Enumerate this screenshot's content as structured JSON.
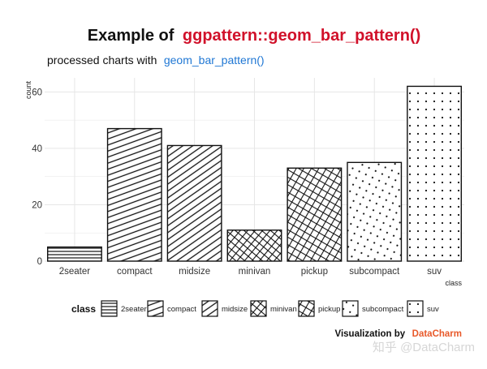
{
  "title": {
    "prefix": "Example of",
    "accent": "ggpattern::geom_bar_pattern()"
  },
  "subtitle": {
    "prefix": "processed charts with",
    "accent": "geom_bar_pattern()"
  },
  "caption": {
    "prefix": "Visualization by",
    "accent": "DataCharm"
  },
  "watermark": "知乎 @DataCharm",
  "colors": {
    "title_accent": "#d1112a",
    "subtitle_accent": "#1f77d4",
    "caption_accent": "#e8592a",
    "bar_outline": "#111111",
    "grid": "#e6e6e6"
  },
  "legend": {
    "title": "class"
  },
  "chart_data": {
    "type": "bar",
    "xlabel": "class",
    "ylabel": "count",
    "ylim": [
      0,
      65
    ],
    "yticks": [
      0,
      20,
      40,
      60
    ],
    "grid": true,
    "legend_position": "bottom",
    "categories": [
      "2seater",
      "compact",
      "midsize",
      "minivan",
      "pickup",
      "subcompact",
      "suv"
    ],
    "values": [
      5,
      47,
      41,
      11,
      33,
      35,
      62
    ],
    "patterns": [
      "horizontal-stripe",
      "diagonal-stripe-shallow",
      "diagonal-stripe-steep",
      "crosshatch",
      "crosshatch-wide",
      "dots-sparse",
      "dots-grid"
    ]
  }
}
